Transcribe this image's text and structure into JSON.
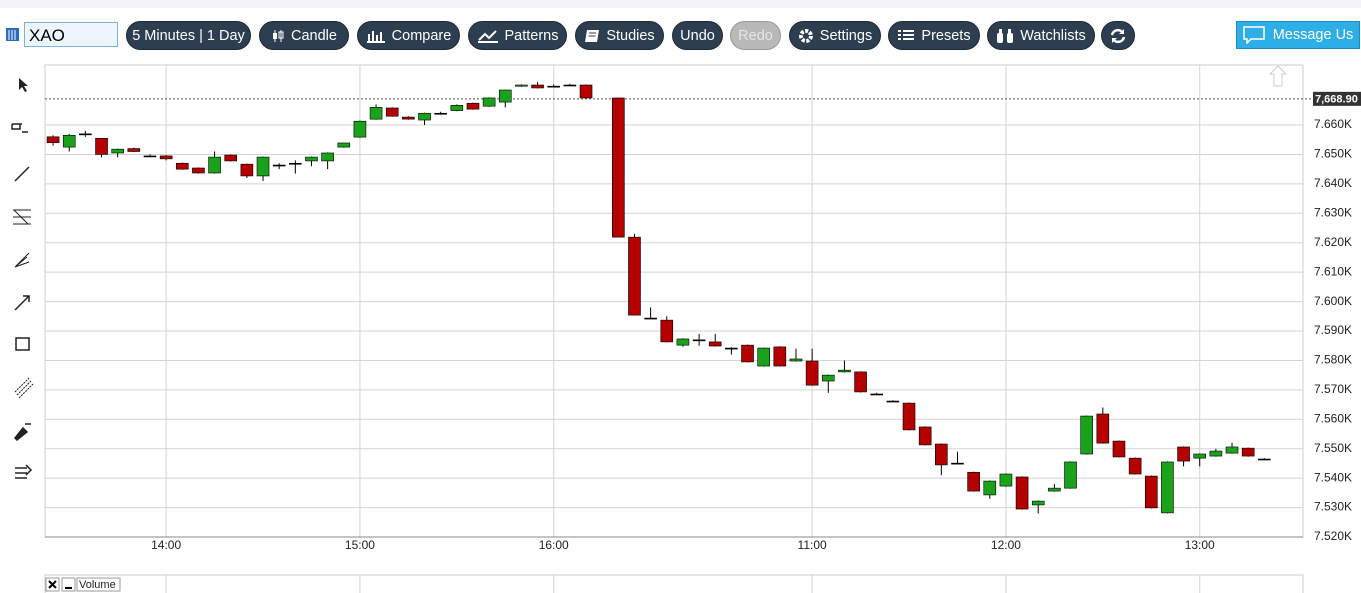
{
  "toolbar": {
    "symbol": "XAO",
    "buttons": [
      "5 Minutes | 1 Day",
      "Candle",
      "Compare",
      "Patterns",
      "Studies",
      "Undo",
      "Redo",
      "Settings",
      "Presets",
      "Watchlists"
    ],
    "message": "Message Us"
  },
  "chart_data": {
    "type": "candlestick",
    "categories": [
      null,
      null,
      null,
      null,
      null,
      null,
      null,
      "14:00",
      null,
      null,
      null,
      null,
      null,
      null,
      null,
      null,
      null,
      null,
      null,
      "15:00",
      null,
      null,
      null,
      null,
      null,
      null,
      null,
      null,
      null,
      null,
      null,
      "16:00",
      null,
      null,
      null,
      null,
      null,
      null,
      null,
      null,
      null,
      null,
      null,
      null,
      null,
      null,
      null,
      "11:00",
      null,
      null,
      null,
      null,
      null,
      null,
      null,
      null,
      null,
      null,
      null,
      "12:00",
      null,
      null,
      null,
      null,
      null,
      null,
      null,
      null,
      null,
      null,
      null,
      "13:00",
      null,
      null,
      null,
      null
    ],
    "open": [
      7656,
      7652.5,
      7657,
      7655.5,
      7650.5,
      7652,
      7649.5,
      7649.5,
      7647,
      7645.4,
      7643.7,
      7649.8,
      7646.7,
      7642.7,
      7646.4,
      7647,
      7647.8,
      7647.8,
      7652.5,
      7655.9,
      7662,
      7665.8,
      7662.7,
      7661.7,
      7664,
      7664.9,
      7667.4,
      7666.4,
      7667.8,
      7673.2,
      7673.6,
      7673.2,
      7673.6,
      7673.6,
      null,
      7669.2,
      7621.9,
      7594.4,
      7593.7,
      7585.2,
      7587,
      7586.3,
      7584.2,
      7585.2,
      7578.1,
      7584.6,
      7579.8,
      7579.8,
      7573,
      7576.1,
      7576.1,
      7568.6,
      7566.2,
      7565.5,
      7557.4,
      7551.6,
      7545.1,
      7542,
      7534.3,
      7537.3,
      7540.4,
      7530.9,
      7535.6,
      7536.6,
      7548.2,
      7561.8,
      7552.6,
      7546.8,
      7540.7,
      7528.2,
      7550.6,
      7546.8,
      7547.5,
      7548.5,
      7550.2,
      7546.5
    ],
    "high": [
      7656.5,
      7657,
      7658,
      7655.5,
      7652,
      7652.3,
      7650,
      7649.8,
      7647.3,
      7645.6,
      7651,
      7650,
      7646.9,
      7649.3,
      7647,
      7648,
      7649.3,
      7650.7,
      7654,
      7661.5,
      7667,
      7666,
      7663,
      7664.2,
      7664.5,
      7667,
      7667.6,
      7669.4,
      7672,
      7673.8,
      7674.6,
      7673.8,
      7674,
      7673.8,
      null,
      7669.2,
      7623,
      7598,
      7595,
      7587.5,
      7589,
      7589,
      7584.5,
      7585.4,
      7584.4,
      7584.8,
      7584,
      7584,
      7575.2,
      7580,
      7576.3,
      7569,
      7566.5,
      7565.7,
      7557.6,
      7551.8,
      7549,
      7542.2,
      7539.2,
      7541.6,
      7540.6,
      7532.4,
      7538,
      7545.7,
      7561.3,
      7564,
      7552.8,
      7547,
      7540.9,
      7545.7,
      7550.8,
      7548.4,
      7550,
      7552,
      7550.4,
      7546.8
    ],
    "low": [
      7653,
      7651,
      7656,
      7649,
      7649,
      7650.8,
      7649,
      7648,
      7644.8,
      7643.5,
      7643.5,
      7647.6,
      7642,
      7641,
      7645,
      7643.5,
      7646,
      7645,
      7652.3,
      7655.7,
      7661.8,
      7662.8,
      7661.8,
      7660,
      7663.5,
      7664.7,
      7665.2,
      7666.2,
      7666,
      7673,
      7672.4,
      7672.8,
      7673.2,
      7669,
      null,
      7621.9,
      7595.4,
      7594,
      7586.1,
      7584.7,
      7585,
      7584.7,
      7582,
      7579.3,
      7577.9,
      7577.9,
      7579.6,
      7571.4,
      7569,
      7575.9,
      7569.1,
      7568.2,
      7565.8,
      7556.2,
      7551.1,
      7541,
      7544.8,
      7535.4,
      7533,
      7537.1,
      7529.3,
      7528,
      7535.4,
      7536.4,
      7548,
      7551.7,
      7547,
      7541.2,
      7529.7,
      7528,
      7544,
      7544,
      7547.3,
      7548.3,
      7547.3,
      7546.2
    ],
    "close": [
      7654,
      7656.5,
      7657,
      7650,
      7651.8,
      7651,
      7649.5,
      7648.5,
      7645,
      7643.7,
      7649.1,
      7647.8,
      7642.7,
      7649.1,
      7646.4,
      7647,
      7649.1,
      7650.5,
      7653.9,
      7661.3,
      7666,
      7663,
      7662,
      7664,
      7664,
      7666.7,
      7665.4,
      7669.2,
      7671.9,
      7673.6,
      7672.6,
      7673.2,
      7673.6,
      7669.2,
      null,
      7621.9,
      7595.4,
      7594.4,
      7586.3,
      7587.3,
      7587,
      7584.9,
      7584.2,
      7579.5,
      7584.2,
      7578.1,
      7580.5,
      7571.6,
      7575,
      7576.7,
      7569.3,
      7568.6,
      7566.2,
      7556.4,
      7551.3,
      7544.5,
      7545.1,
      7535.6,
      7539,
      7541.4,
      7529.5,
      7532.2,
      7536.6,
      7545.5,
      7561.1,
      7551.9,
      7547.2,
      7541.4,
      7529.9,
      7545.5,
      7545.8,
      7548.2,
      7549.2,
      7550.6,
      7547.5,
      7546.5
    ],
    "up_color": "#1aa31a",
    "down_color": "#b50000",
    "ylim": [
      7520,
      7680.4
    ],
    "yticks": [
      {
        "value": 7520,
        "label": "7.520K"
      },
      {
        "value": 7530,
        "label": "7.530K"
      },
      {
        "value": 7540,
        "label": "7.540K"
      },
      {
        "value": 7550,
        "label": "7.550K"
      },
      {
        "value": 7560,
        "label": "7.560K"
      },
      {
        "value": 7570,
        "label": "7.570K"
      },
      {
        "value": 7580,
        "label": "7.580K"
      },
      {
        "value": 7590,
        "label": "7.590K"
      },
      {
        "value": 7600,
        "label": "7.600K"
      },
      {
        "value": 7610,
        "label": "7.610K"
      },
      {
        "value": 7620,
        "label": "7.620K"
      },
      {
        "value": 7630,
        "label": "7.630K"
      },
      {
        "value": 7640,
        "label": "7.640K"
      },
      {
        "value": 7650,
        "label": "7.650K"
      },
      {
        "value": 7660,
        "label": "7.660K"
      }
    ],
    "current_price": {
      "value": 7668.9,
      "label": "7,668.90"
    },
    "grid": true,
    "panel": "Volume"
  }
}
